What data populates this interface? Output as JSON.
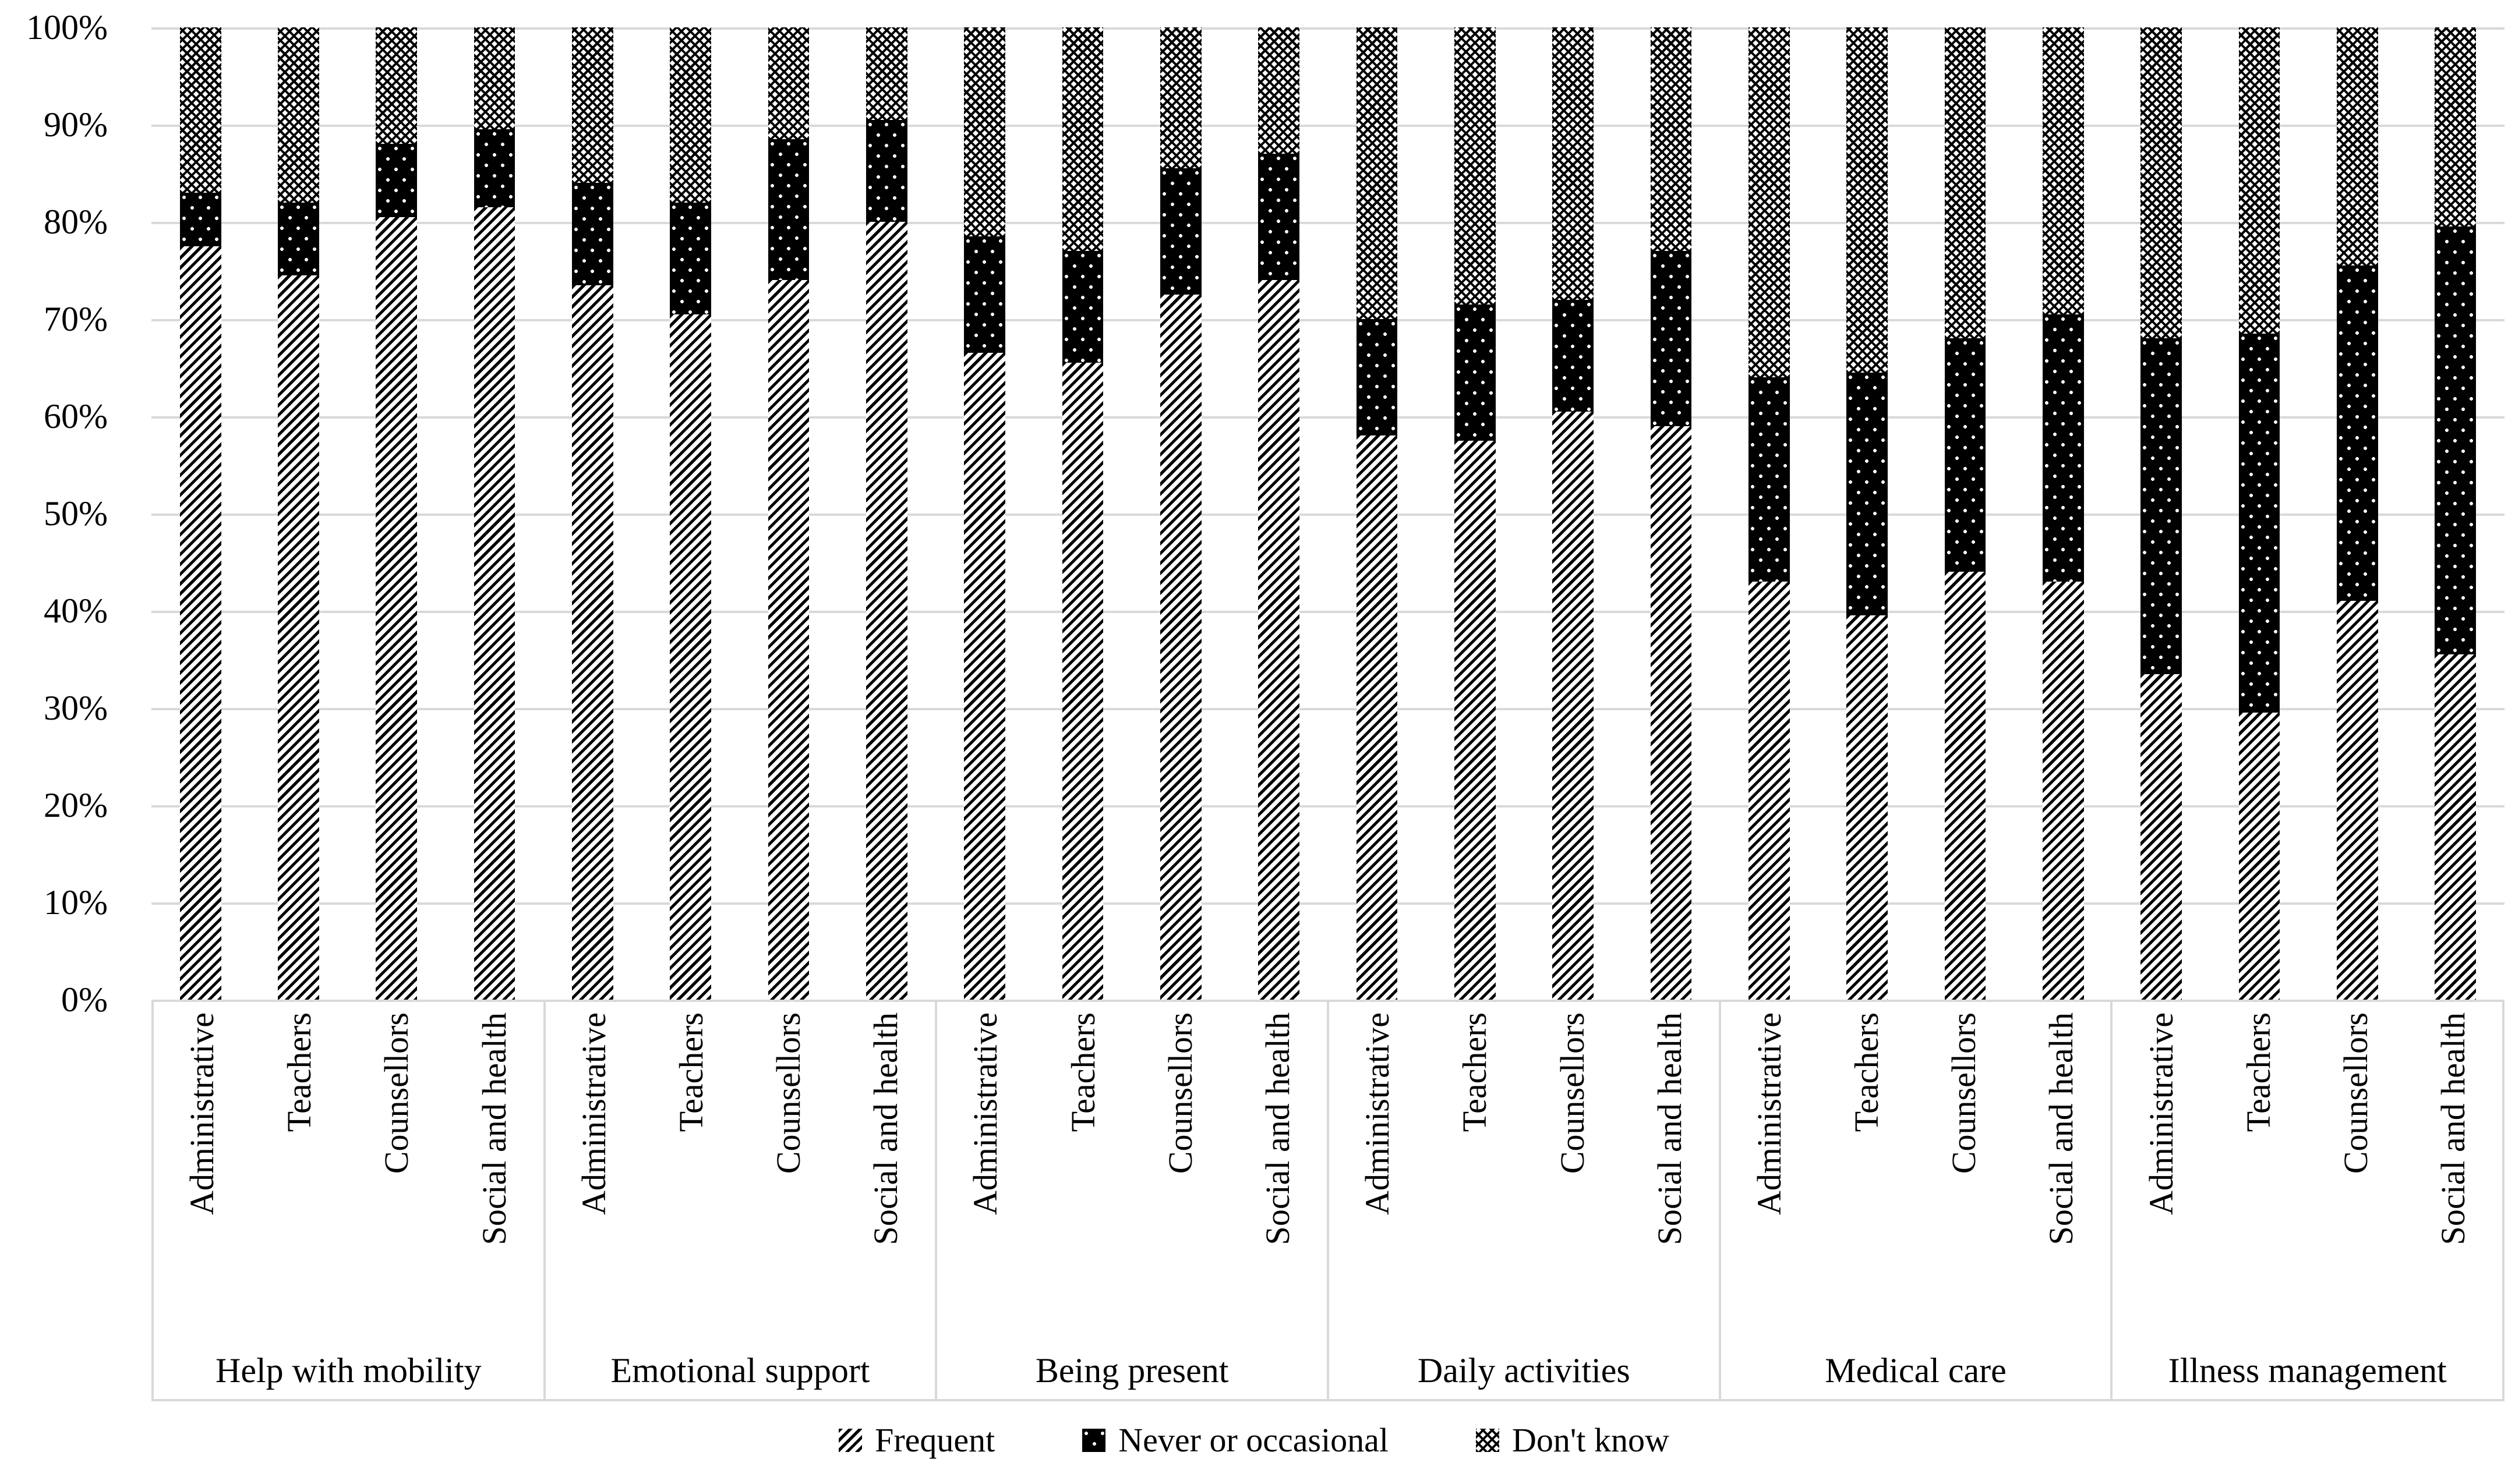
{
  "chart_data": {
    "type": "bar",
    "subtype": "100-percent-stacked-column",
    "title": "",
    "xlabel": "",
    "ylabel": "",
    "ylim": [
      0,
      100
    ],
    "grid": "horizontal",
    "legend_position": "bottom",
    "background_color": "#ffffff",
    "gridline_color": "#d9d9d9",
    "text_color": "#000000",
    "y_ticks": [
      "100%",
      "90%",
      "80%",
      "70%",
      "60%",
      "50%",
      "40%",
      "30%",
      "20%",
      "10%",
      "0%"
    ],
    "categories": [
      "Administrative",
      "Teachers",
      "Counsellors",
      "Social and health"
    ],
    "series": [
      {
        "name": "Frequent",
        "pattern": "diagonal-stripes",
        "color": "#000000"
      },
      {
        "name": "Never or occasional",
        "pattern": "black-with-white-dots",
        "color": "#000000"
      },
      {
        "name": "Don't know",
        "pattern": "crosshatch",
        "color": "#000000"
      }
    ],
    "groups": [
      {
        "label": "Help with mobility",
        "values": [
          {
            "category": "Administrative",
            "frequent": 77.5,
            "never_or_occasional": 5.5,
            "dont_know": 17
          },
          {
            "category": "Teachers",
            "frequent": 74.5,
            "never_or_occasional": 7.5,
            "dont_know": 18
          },
          {
            "category": "Counsellors",
            "frequent": 80.5,
            "never_or_occasional": 7.5,
            "dont_know": 12
          },
          {
            "category": "Social and health",
            "frequent": 81.5,
            "never_or_occasional": 8,
            "dont_know": 10.5
          }
        ]
      },
      {
        "label": "Emotional support",
        "values": [
          {
            "category": "Administrative",
            "frequent": 73.5,
            "never_or_occasional": 10.5,
            "dont_know": 16
          },
          {
            "category": "Teachers",
            "frequent": 70.5,
            "never_or_occasional": 11.5,
            "dont_know": 18
          },
          {
            "category": "Counsellors",
            "frequent": 74,
            "never_or_occasional": 14.5,
            "dont_know": 11.5
          },
          {
            "category": "Social and health",
            "frequent": 80,
            "never_or_occasional": 10.5,
            "dont_know": 9.5
          }
        ]
      },
      {
        "label": "Being present",
        "values": [
          {
            "category": "Administrative",
            "frequent": 66.5,
            "never_or_occasional": 12,
            "dont_know": 21.5
          },
          {
            "category": "Teachers",
            "frequent": 65.5,
            "never_or_occasional": 11.5,
            "dont_know": 23
          },
          {
            "category": "Counsellors",
            "frequent": 72.5,
            "never_or_occasional": 13,
            "dont_know": 14.5
          },
          {
            "category": "Social and health",
            "frequent": 74,
            "never_or_occasional": 13,
            "dont_know": 13
          }
        ]
      },
      {
        "label": "Daily activities",
        "values": [
          {
            "category": "Administrative",
            "frequent": 58,
            "never_or_occasional": 12,
            "dont_know": 30
          },
          {
            "category": "Teachers",
            "frequent": 57.5,
            "never_or_occasional": 14,
            "dont_know": 28.5
          },
          {
            "category": "Counsellors",
            "frequent": 60.5,
            "never_or_occasional": 11.5,
            "dont_know": 28
          },
          {
            "category": "Social and health",
            "frequent": 59,
            "never_or_occasional": 18,
            "dont_know": 23
          }
        ]
      },
      {
        "label": "Medical care",
        "values": [
          {
            "category": "Administrative",
            "frequent": 43,
            "never_or_occasional": 21,
            "dont_know": 36
          },
          {
            "category": "Teachers",
            "frequent": 39.5,
            "never_or_occasional": 25,
            "dont_know": 35.5
          },
          {
            "category": "Counsellors",
            "frequent": 44,
            "never_or_occasional": 24,
            "dont_know": 32
          },
          {
            "category": "Social and health",
            "frequent": 43,
            "never_or_occasional": 27.5,
            "dont_know": 29.5
          }
        ]
      },
      {
        "label": "Illness management",
        "values": [
          {
            "category": "Administrative",
            "frequent": 33.5,
            "never_or_occasional": 34.5,
            "dont_know": 32
          },
          {
            "category": "Teachers",
            "frequent": 29.5,
            "never_or_occasional": 39,
            "dont_know": 31.5
          },
          {
            "category": "Counsellors",
            "frequent": 41,
            "never_or_occasional": 34.5,
            "dont_know": 24.5
          },
          {
            "category": "Social and health",
            "frequent": 35.5,
            "never_or_occasional": 44,
            "dont_know": 20.5
          }
        ]
      }
    ]
  }
}
